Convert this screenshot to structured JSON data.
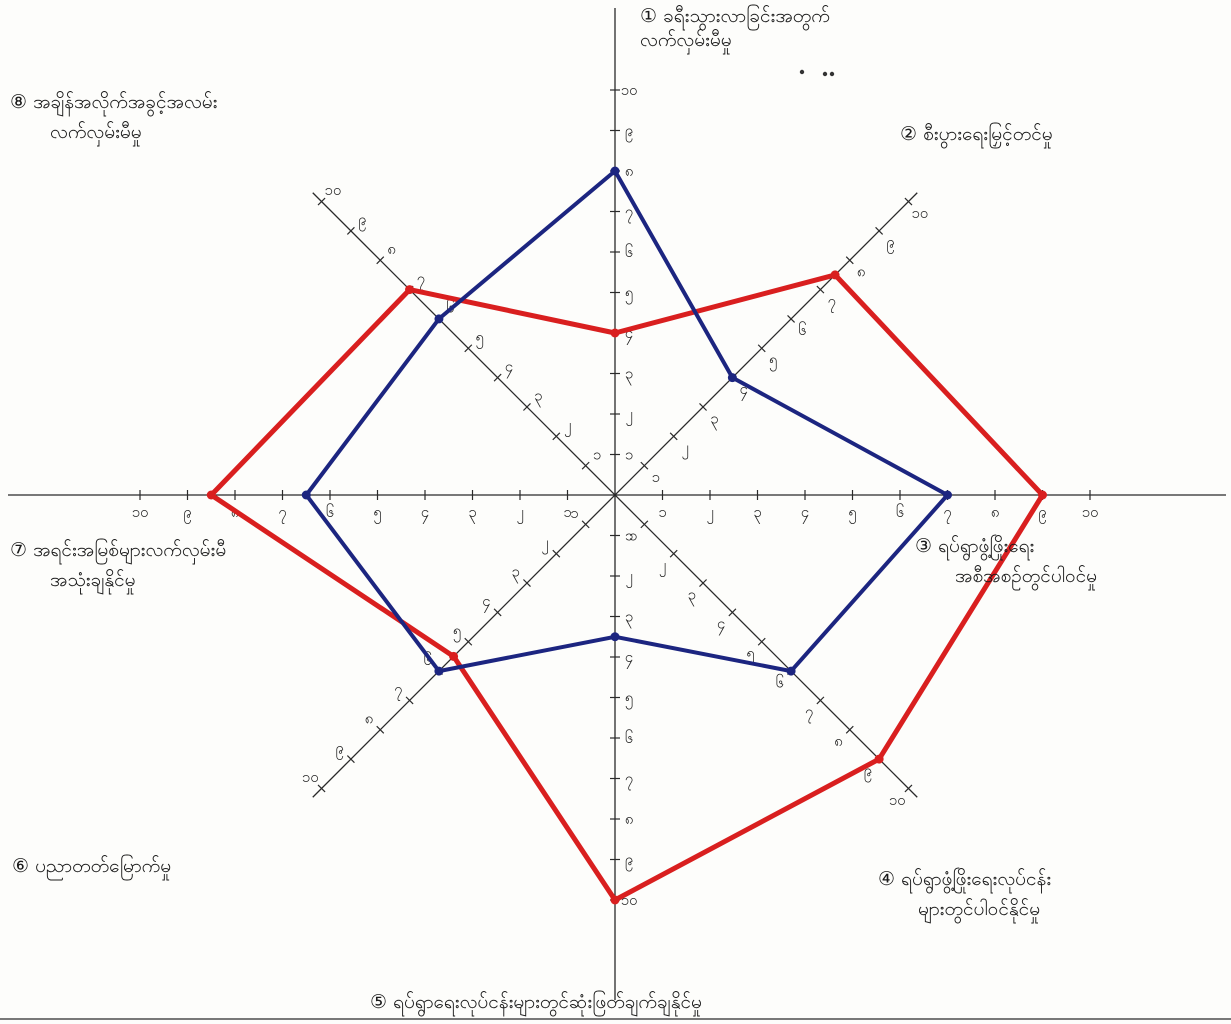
{
  "chart_data": {
    "type": "radar",
    "axis_max": 10,
    "axes": [
      {
        "name": "axis-top",
        "label_lines": [
          "① ခရီးသွားလာခြင်းအတွက်",
          "လက်လှမ်းမီမှု"
        ],
        "color": "#1a1a1a"
      },
      {
        "name": "axis-top-right",
        "label_lines": [
          "② စီးပွားရေးမြှင့်တင်မှု"
        ],
        "color": "#1a1a1a"
      },
      {
        "name": "axis-right",
        "label_lines": [
          "③ ရပ်ရွာဖွံ့ဖြိုးရေး",
          "အစီအစဉ်တွင်ပါဝင်မှု"
        ],
        "color": "#1a1a1a"
      },
      {
        "name": "axis-bottom-right",
        "label_lines": [
          "④ ရပ်ရွာဖွံ့ဖြိုးရေးလုပ်ငန်း",
          "များတွင်ပါဝင်နိုင်မှု"
        ],
        "color": "#1a1a1a"
      },
      {
        "name": "axis-bottom",
        "label_lines": [
          "⑤ ရပ်ရွာရေးလုပ်ငန်းများတွင်ဆုံးဖြတ်ချက်ချနိုင်မှု"
        ],
        "color": "#1a1a1a"
      },
      {
        "name": "axis-bottom-left",
        "label_lines": [
          "⑥ ပညာတတ်မြောက်မှု"
        ],
        "color": "#1a1a1a"
      },
      {
        "name": "axis-left",
        "label_lines": [
          "⑦ အရင်းအမြစ်များလက်လှမ်းမီ",
          "အသုံးချနိုင်မှု"
        ],
        "color": "#1a1a1a"
      },
      {
        "name": "axis-top-left",
        "label_lines": [
          "⑧ အချိန်အလိုက်အခွင့်အလမ်း",
          "လက်လှမ်းမီမှု"
        ],
        "color": "#1a1a1a"
      }
    ],
    "tick_labels": [
      "၁",
      "၂",
      "၃",
      "၄",
      "၅",
      "၆",
      "၇",
      "၈",
      "၉",
      "၁၀"
    ],
    "series": [
      {
        "color": "#d91f1f",
        "values": [
          4,
          7.5,
          9,
          9,
          10,
          5.5,
          8.5,
          7
        ]
      },
      {
        "color": "#1c2580",
        "values": [
          8,
          4,
          7,
          6,
          3.5,
          6,
          6.5,
          6
        ]
      }
    ]
  }
}
